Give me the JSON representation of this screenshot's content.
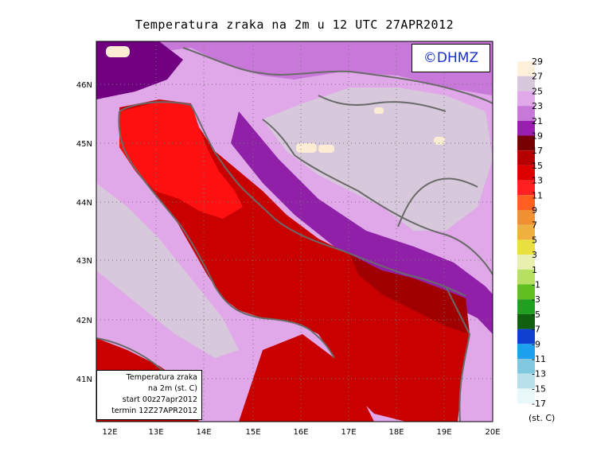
{
  "title": "Temperatura zraka na 2m u 12 UTC 27APR2012",
  "watermark": "©DHMZ",
  "info_box": {
    "line1": "Temperatura zraka",
    "line2": "na 2m (st. C)",
    "line3": "start 00z27apr2012",
    "line4": "termin 12Z27APR2012"
  },
  "map": {
    "lon_ticks": [
      "12E",
      "13E",
      "14E",
      "15E",
      "16E",
      "17E",
      "18E",
      "19E",
      "20E"
    ],
    "lat_ticks": [
      "46N",
      "45N",
      "44N",
      "43N",
      "42N",
      "41N"
    ],
    "colors": {
      "sea_main": "#c80000",
      "sea_north": "#ff1010",
      "land_light": "#e0a8e8",
      "land_grey": "#d8c8dc",
      "land_mid": "#c878d8",
      "land_dark": "#9020a8",
      "land_darkest": "#700080",
      "warm_spot": "#fcecd4",
      "border_line": "#6a6a6a"
    }
  },
  "legend": {
    "unit": "(st. C)",
    "colors": [
      "#fff0dc",
      "#d8c8dc",
      "#e0a8e8",
      "#c878d8",
      "#9a1eb0",
      "#780000",
      "#b40000",
      "#dc0000",
      "#ff2020",
      "#ff6020",
      "#f09030",
      "#f0b040",
      "#e8e040",
      "#e8f0b0",
      "#b8e060",
      "#60c020",
      "#20a020",
      "#106010",
      "#1040d0",
      "#1ea0f0",
      "#80c8e0",
      "#b8e0ea",
      "#e8f8f8"
    ],
    "labels": [
      "29",
      "27",
      "25",
      "23",
      "21",
      "19",
      "17",
      "15",
      "13",
      "11",
      "9",
      "7",
      "5",
      "3",
      "1",
      "-1",
      "-3",
      "-5",
      "-7",
      "-9",
      "-11",
      "-13",
      "-15",
      "-17"
    ]
  }
}
